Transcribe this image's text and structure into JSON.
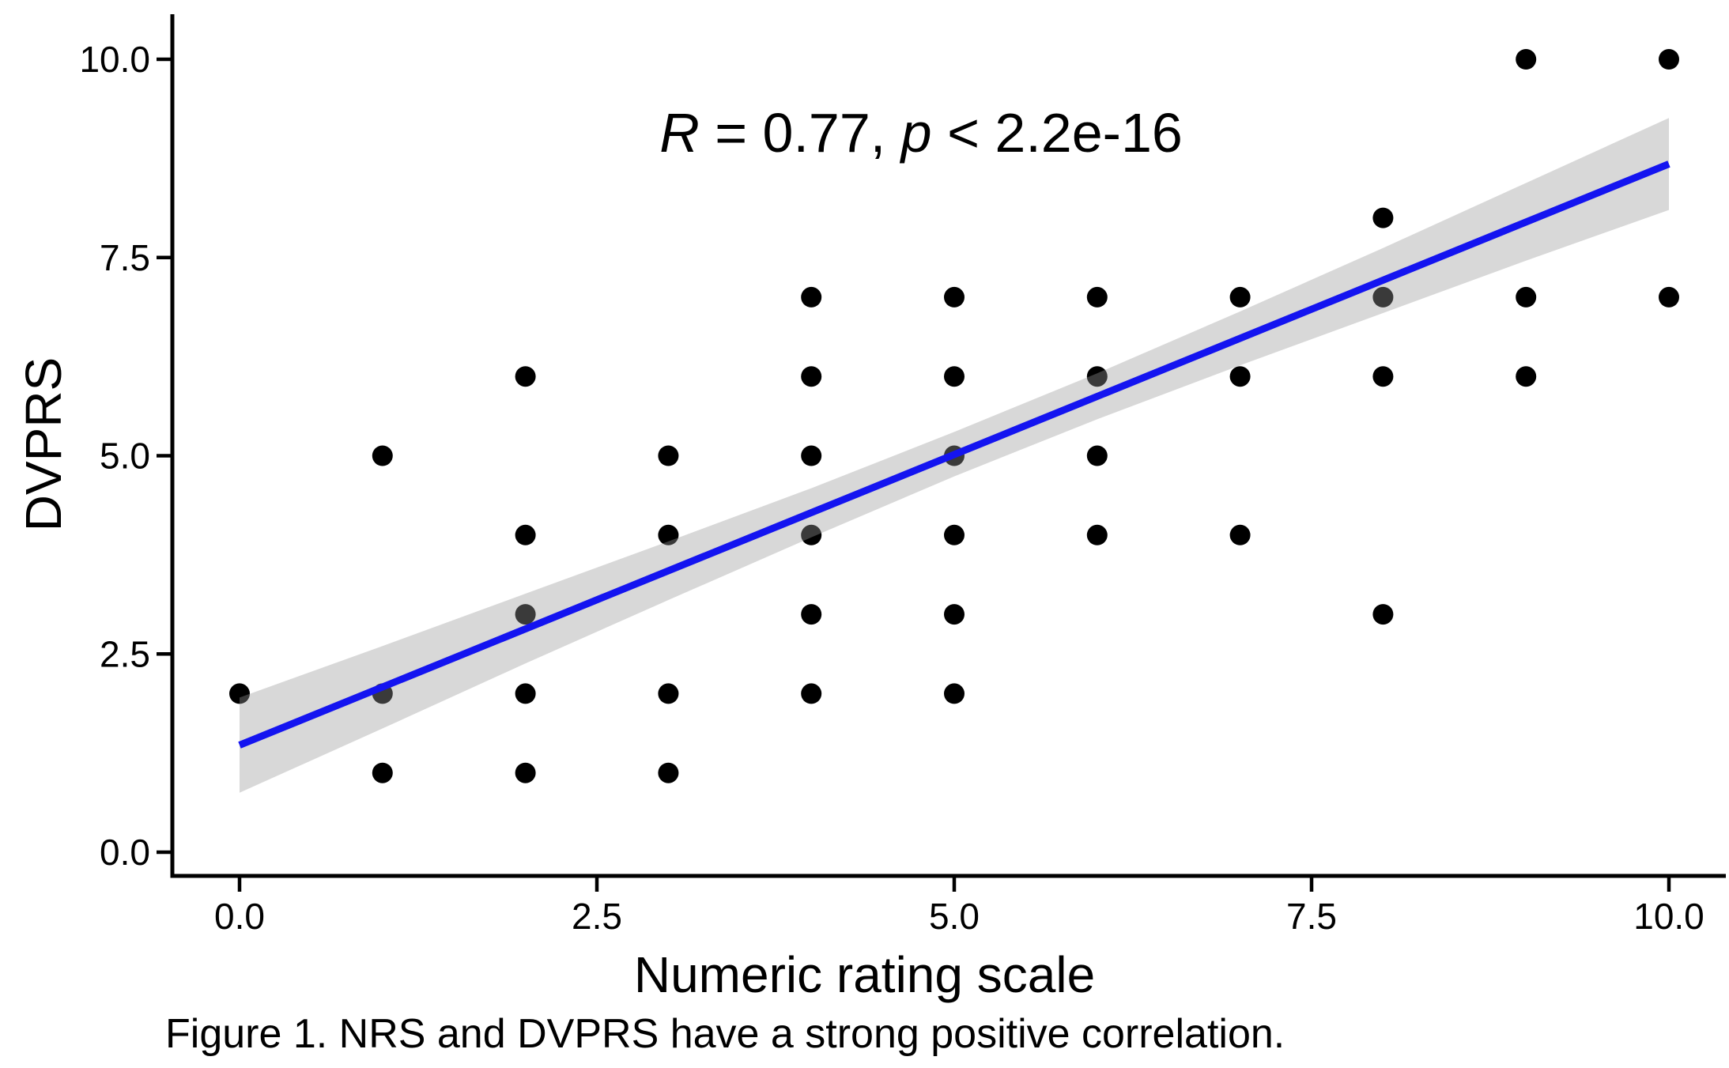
{
  "chart_data": {
    "type": "scatter",
    "title": "",
    "xlabel": "Numeric rating scale",
    "ylabel": "DVPRS",
    "x_tick_labels": [
      "0.0",
      "2.5",
      "5.0",
      "7.5",
      "10.0"
    ],
    "x_tick_values": [
      0,
      2.5,
      5,
      7.5,
      10
    ],
    "y_tick_labels": [
      "0.0",
      "2.5",
      "5.0",
      "7.5",
      "10.0"
    ],
    "y_tick_values": [
      0,
      2.5,
      5,
      7.5,
      10
    ],
    "xlim": [
      -0.47,
      10.4
    ],
    "ylim": [
      -0.3,
      10.5
    ],
    "grid": false,
    "legend": "none",
    "point_color": "#000000",
    "points": [
      [
        0,
        2
      ],
      [
        1,
        1
      ],
      [
        1,
        2
      ],
      [
        1,
        5
      ],
      [
        2,
        1
      ],
      [
        2,
        2
      ],
      [
        2,
        3
      ],
      [
        2,
        4
      ],
      [
        2,
        6
      ],
      [
        3,
        1
      ],
      [
        3,
        2
      ],
      [
        3,
        4
      ],
      [
        3,
        5
      ],
      [
        4,
        2
      ],
      [
        4,
        3
      ],
      [
        4,
        4
      ],
      [
        4,
        5
      ],
      [
        4,
        6
      ],
      [
        4,
        7
      ],
      [
        5,
        2
      ],
      [
        5,
        3
      ],
      [
        5,
        4
      ],
      [
        5,
        5
      ],
      [
        5,
        6
      ],
      [
        5,
        7
      ],
      [
        6,
        4
      ],
      [
        6,
        5
      ],
      [
        6,
        6
      ],
      [
        6,
        7
      ],
      [
        7,
        4
      ],
      [
        7,
        6
      ],
      [
        7,
        7
      ],
      [
        8,
        3
      ],
      [
        8,
        6
      ],
      [
        8,
        7
      ],
      [
        8,
        8
      ],
      [
        9,
        6
      ],
      [
        9,
        7
      ],
      [
        9,
        10
      ],
      [
        10,
        7
      ],
      [
        10,
        10
      ]
    ],
    "regression_line": {
      "x_start": 0,
      "y_start": 1.35,
      "x_end": 10,
      "y_end": 8.68,
      "color": "#1414F0"
    },
    "ci_band": {
      "x": [
        0,
        1,
        2,
        3,
        4,
        5,
        6,
        7,
        8,
        9,
        10
      ],
      "upper": [
        1.95,
        2.6,
        3.26,
        3.92,
        4.59,
        5.3,
        6.04,
        6.82,
        7.62,
        8.44,
        9.26
      ],
      "lower": [
        0.75,
        1.56,
        2.38,
        3.18,
        3.97,
        4.74,
        5.46,
        6.14,
        6.8,
        7.46,
        8.1
      ],
      "fill": "#999999",
      "opacity": 0.38
    },
    "annotation": {
      "full_text": "R = 0.77, p < 2.2e-16",
      "r_symbol": "R",
      "r_rest": " = 0.77, ",
      "p_symbol": "p",
      "p_rest": " < 2.2e-16"
    }
  },
  "caption": "Figure 1. NRS and DVPRS have a strong positive correlation."
}
